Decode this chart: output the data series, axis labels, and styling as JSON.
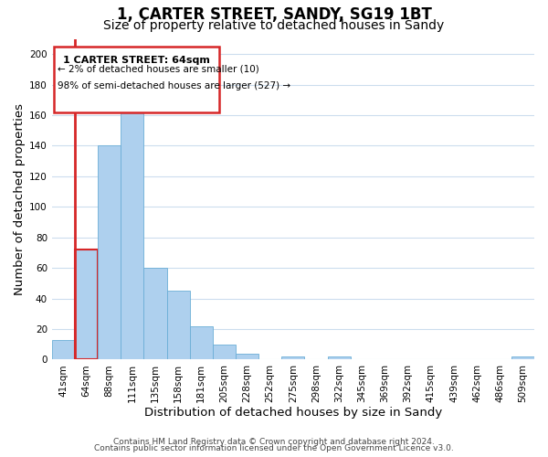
{
  "title": "1, CARTER STREET, SANDY, SG19 1BT",
  "subtitle": "Size of property relative to detached houses in Sandy",
  "xlabel": "Distribution of detached houses by size in Sandy",
  "ylabel": "Number of detached properties",
  "bin_labels": [
    "41sqm",
    "64sqm",
    "88sqm",
    "111sqm",
    "135sqm",
    "158sqm",
    "181sqm",
    "205sqm",
    "228sqm",
    "252sqm",
    "275sqm",
    "298sqm",
    "322sqm",
    "345sqm",
    "369sqm",
    "392sqm",
    "415sqm",
    "439sqm",
    "462sqm",
    "486sqm",
    "509sqm"
  ],
  "bar_values": [
    13,
    72,
    140,
    165,
    60,
    45,
    22,
    10,
    4,
    0,
    2,
    0,
    2,
    0,
    0,
    0,
    0,
    0,
    0,
    0,
    2
  ],
  "bar_color": "#aed0ee",
  "bar_edge_color": "#6baed6",
  "highlight_bar_index": 1,
  "highlight_bar_edge_color": "#d62728",
  "highlight_line_color": "#d62728",
  "ylim": [
    0,
    210
  ],
  "yticks": [
    0,
    20,
    40,
    60,
    80,
    100,
    120,
    140,
    160,
    180,
    200
  ],
  "annotation_title": "1 CARTER STREET: 64sqm",
  "annotation_line1": "← 2% of detached houses are smaller (10)",
  "annotation_line2": "98% of semi-detached houses are larger (527) →",
  "footer_line1": "Contains HM Land Registry data © Crown copyright and database right 2024.",
  "footer_line2": "Contains public sector information licensed under the Open Government Licence v3.0.",
  "background_color": "#ffffff",
  "grid_color": "#ccddee",
  "title_fontsize": 12,
  "subtitle_fontsize": 10,
  "axis_label_fontsize": 9.5,
  "tick_fontsize": 7.5,
  "footer_fontsize": 6.5
}
